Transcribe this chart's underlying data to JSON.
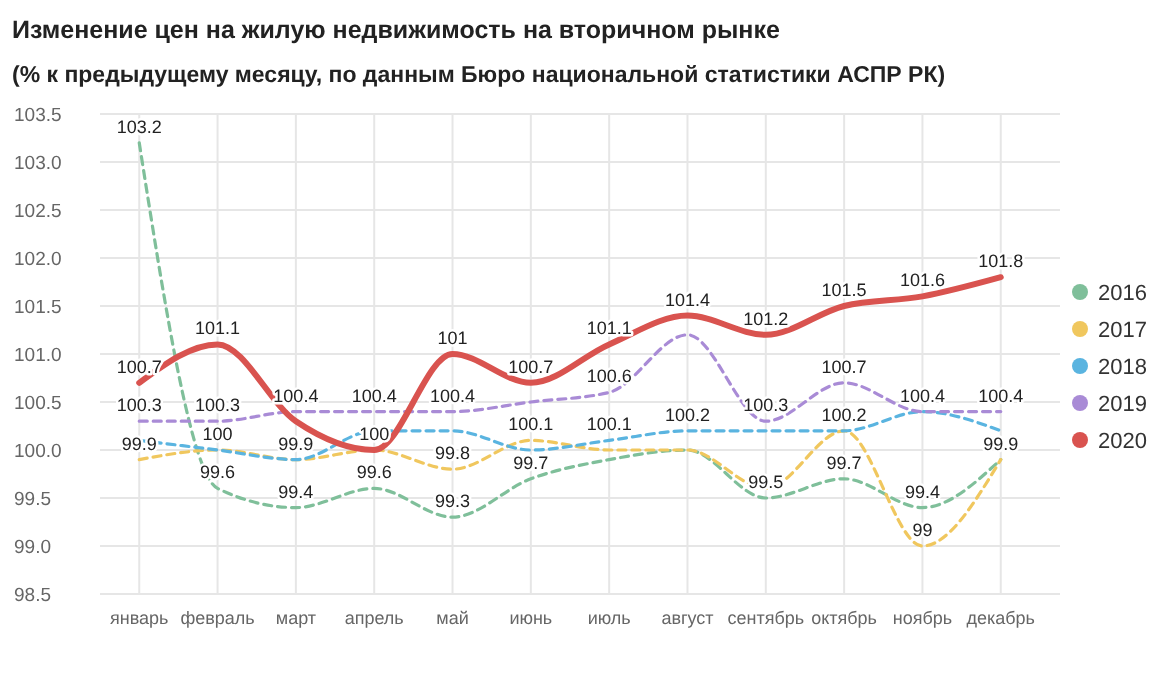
{
  "chart_data": {
    "type": "line",
    "title": "Изменение цен на жилую недвижимость на вторичном рынке",
    "subtitle": "(% к предыдущему месяцу, по данным Бюро национальной статистики АСПР РК)",
    "categories": [
      "январь",
      "февраль",
      "март",
      "апрель",
      "май",
      "июнь",
      "июль",
      "август",
      "сентябрь",
      "октябрь",
      "ноябрь",
      "декабрь"
    ],
    "ylim": [
      98.5,
      103.5
    ],
    "yticks": [
      {
        "value": 98.5,
        "label": "98.5"
      },
      {
        "value": 99,
        "label": "99.0"
      },
      {
        "value": 99.5,
        "label": "99.5"
      },
      {
        "value": 100,
        "label": "100.0"
      },
      {
        "value": 100.5,
        "label": "100.5"
      },
      {
        "value": 101,
        "label": "101.0"
      },
      {
        "value": 101.5,
        "label": "101.5"
      },
      {
        "value": 102,
        "label": "102.0"
      },
      {
        "value": 102.5,
        "label": "102.5"
      },
      {
        "value": 103,
        "label": "103.0"
      },
      {
        "value": 103.5,
        "label": "103.5"
      }
    ],
    "grid": true,
    "legend": "right",
    "marker": "none",
    "series": [
      {
        "name": "2016",
        "color": "#7fbf9a",
        "line_style": "dashed",
        "values": [
          103.2,
          99.6,
          99.4,
          99.6,
          99.3,
          99.7,
          99.9,
          100.0,
          99.5,
          99.7,
          99.4,
          99.9
        ],
        "value_labels": [
          "103.2",
          "99.6",
          "99.4",
          "99.6",
          "99.3",
          "99.7",
          null,
          null,
          "99.5",
          "99.7",
          "99.4",
          "99.9"
        ]
      },
      {
        "name": "2017",
        "color": "#f0c75e",
        "line_style": "dashed",
        "values": [
          99.9,
          100,
          99.9,
          100,
          99.8,
          100.1,
          100.0,
          100.0,
          99.6,
          100.2,
          99,
          99.9
        ],
        "value_labels": [
          "99.9",
          "100",
          "99.9",
          null,
          "99.8",
          "100.1",
          null,
          null,
          null,
          null,
          "99",
          null
        ]
      },
      {
        "name": "2018",
        "color": "#5ab4e0",
        "line_style": "dashed",
        "values": [
          100.1,
          100.0,
          99.9,
          100.2,
          100.2,
          100.0,
          100.1,
          100.2,
          100.2,
          100.2,
          100.4,
          100.2
        ],
        "value_labels": [
          null,
          null,
          null,
          null,
          null,
          null,
          "100.1",
          "100.2",
          null,
          "100.2",
          null,
          null
        ]
      },
      {
        "name": "2019",
        "color": "#a98bd6",
        "line_style": "dashed",
        "values": [
          100.3,
          100.3,
          100.4,
          100.4,
          100.4,
          100.5,
          100.6,
          101.2,
          100.3,
          100.7,
          100.4,
          100.4
        ],
        "value_labels": [
          "100.3",
          "100.3",
          "100.4",
          "100.4",
          "100.4",
          null,
          "100.6",
          null,
          "100.3",
          "100.7",
          "100.4",
          "100.4"
        ]
      },
      {
        "name": "2020",
        "color": "#d9534f",
        "line_style": "solid",
        "values": [
          100.7,
          101.1,
          100.3,
          100.0,
          101,
          100.7,
          101.1,
          101.4,
          101.2,
          101.5,
          101.6,
          101.8
        ],
        "value_labels": [
          "100.7",
          "101.1",
          null,
          "100",
          "101",
          "100.7",
          "101.1",
          "101.4",
          "101.2",
          "101.5",
          "101.6",
          "101.8"
        ]
      }
    ]
  }
}
